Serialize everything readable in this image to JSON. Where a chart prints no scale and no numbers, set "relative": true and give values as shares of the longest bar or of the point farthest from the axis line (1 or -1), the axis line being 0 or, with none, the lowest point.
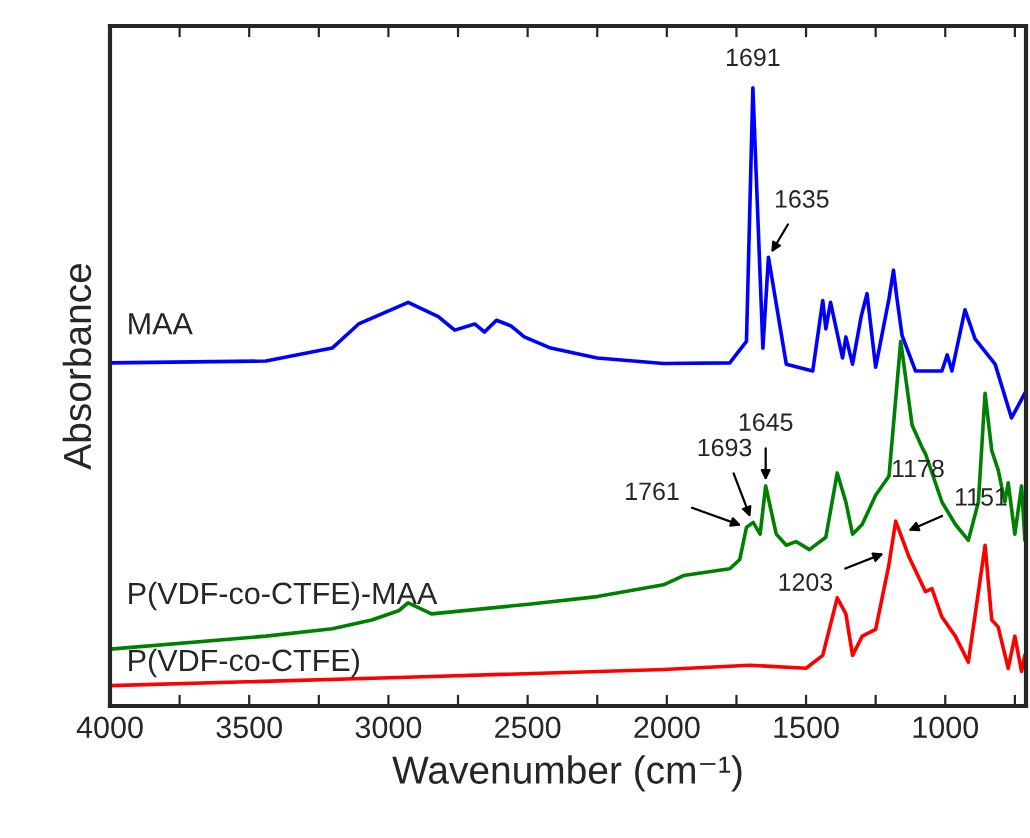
{
  "chart_data": {
    "type": "line",
    "relative": true,
    "xlabel": "Wavenumber (cm⁻¹)",
    "ylabel": "Absorbance",
    "xlim": [
      4000,
      710
    ],
    "xticks": [
      4000,
      {
        "value": 3750,
        "label": null
      },
      3500,
      {
        "value": 3250,
        "label": null
      },
      3000,
      {
        "value": 2750,
        "label": null
      },
      2500,
      {
        "value": 2250,
        "label": null
      },
      2000,
      {
        "value": 1750,
        "label": null
      },
      1500,
      {
        "value": 1250,
        "label": null
      },
      1000,
      {
        "value": 750,
        "label": null
      }
    ],
    "grid": false,
    "legend": false,
    "series": [
      {
        "name": "MAA",
        "color": "#0000ff",
        "x": [
          4000,
          3440,
          3202,
          3107,
          2964,
          2929,
          2821,
          2762,
          2690,
          2655,
          2612,
          2560,
          2512,
          2417,
          2250,
          2012,
          1774,
          1714,
          1691,
          1655,
          1635,
          1571,
          1476,
          1440,
          1429,
          1412,
          1369,
          1357,
          1333,
          1302,
          1281,
          1250,
          1202,
          1186,
          1174,
          1155,
          1107,
          1012,
          993,
          976,
          929,
          893,
          821,
          762,
          714
        ],
        "values": [
          0.555,
          0.558,
          0.579,
          0.618,
          0.646,
          0.653,
          0.63,
          0.608,
          0.618,
          0.605,
          0.624,
          0.615,
          0.597,
          0.579,
          0.563,
          0.554,
          0.555,
          0.59,
          1.0,
          0.579,
          0.726,
          0.553,
          0.542,
          0.656,
          0.61,
          0.653,
          0.563,
          0.597,
          0.553,
          0.63,
          0.667,
          0.548,
          0.659,
          0.705,
          0.661,
          0.599,
          0.542,
          0.542,
          0.568,
          0.542,
          0.641,
          0.594,
          0.553,
          0.466,
          0.506
        ]
      },
      {
        "name": "P(VDF-co-CTFE)-MAA",
        "color": "#008000",
        "x": [
          4000,
          3440,
          3202,
          3060,
          2964,
          2929,
          2845,
          2488,
          2250,
          2012,
          1940,
          1774,
          1738,
          1714,
          1690,
          1665,
          1645,
          1607,
          1571,
          1536,
          1488,
          1429,
          1388,
          1357,
          1333,
          1298,
          1250,
          1202,
          1160,
          1119,
          1083,
          1071,
          1012,
          964,
          917,
          881,
          857,
          833,
          810,
          786,
          774,
          750,
          726,
          714
        ],
        "values": [
          0.092,
          0.113,
          0.125,
          0.139,
          0.154,
          0.167,
          0.149,
          0.165,
          0.177,
          0.196,
          0.211,
          0.222,
          0.237,
          0.289,
          0.297,
          0.278,
          0.356,
          0.278,
          0.26,
          0.266,
          0.253,
          0.273,
          0.377,
          0.33,
          0.278,
          0.294,
          0.341,
          0.372,
          0.59,
          0.454,
          0.418,
          0.408,
          0.33,
          0.294,
          0.268,
          0.33,
          0.506,
          0.413,
          0.382,
          0.33,
          0.361,
          0.278,
          0.356,
          0.268
        ]
      },
      {
        "name": "P(VDF-co-CTFE)",
        "color": "#ff0000",
        "x": [
          4000,
          2964,
          2012,
          1702,
          1500,
          1440,
          1388,
          1357,
          1333,
          1298,
          1250,
          1203,
          1178,
          1131,
          1071,
          1048,
          1012,
          964,
          917,
          857,
          833,
          810,
          774,
          750,
          726,
          714
        ],
        "values": [
          0.033,
          0.046,
          0.059,
          0.066,
          0.061,
          0.082,
          0.175,
          0.149,
          0.082,
          0.113,
          0.124,
          0.227,
          0.299,
          0.242,
          0.185,
          0.19,
          0.144,
          0.113,
          0.071,
          0.26,
          0.139,
          0.128,
          0.061,
          0.113,
          0.056,
          0.082
        ]
      }
    ],
    "annotations": [
      {
        "text": "1691",
        "x": 1691,
        "y": 1.0
      },
      {
        "text": "1635",
        "x": 1635,
        "y": 0.726
      },
      {
        "text": "1645",
        "x": 1645,
        "y": 0.356
      },
      {
        "text": "1693",
        "x": 1693,
        "y": 0.297
      },
      {
        "text": "1761",
        "x": 1714,
        "y": 0.289
      },
      {
        "text": "1178",
        "x": 1178,
        "y": 0.299
      },
      {
        "text": "1151",
        "x": 1151,
        "y": 0.28
      },
      {
        "text": "1203",
        "x": 1203,
        "y": 0.25
      }
    ]
  }
}
